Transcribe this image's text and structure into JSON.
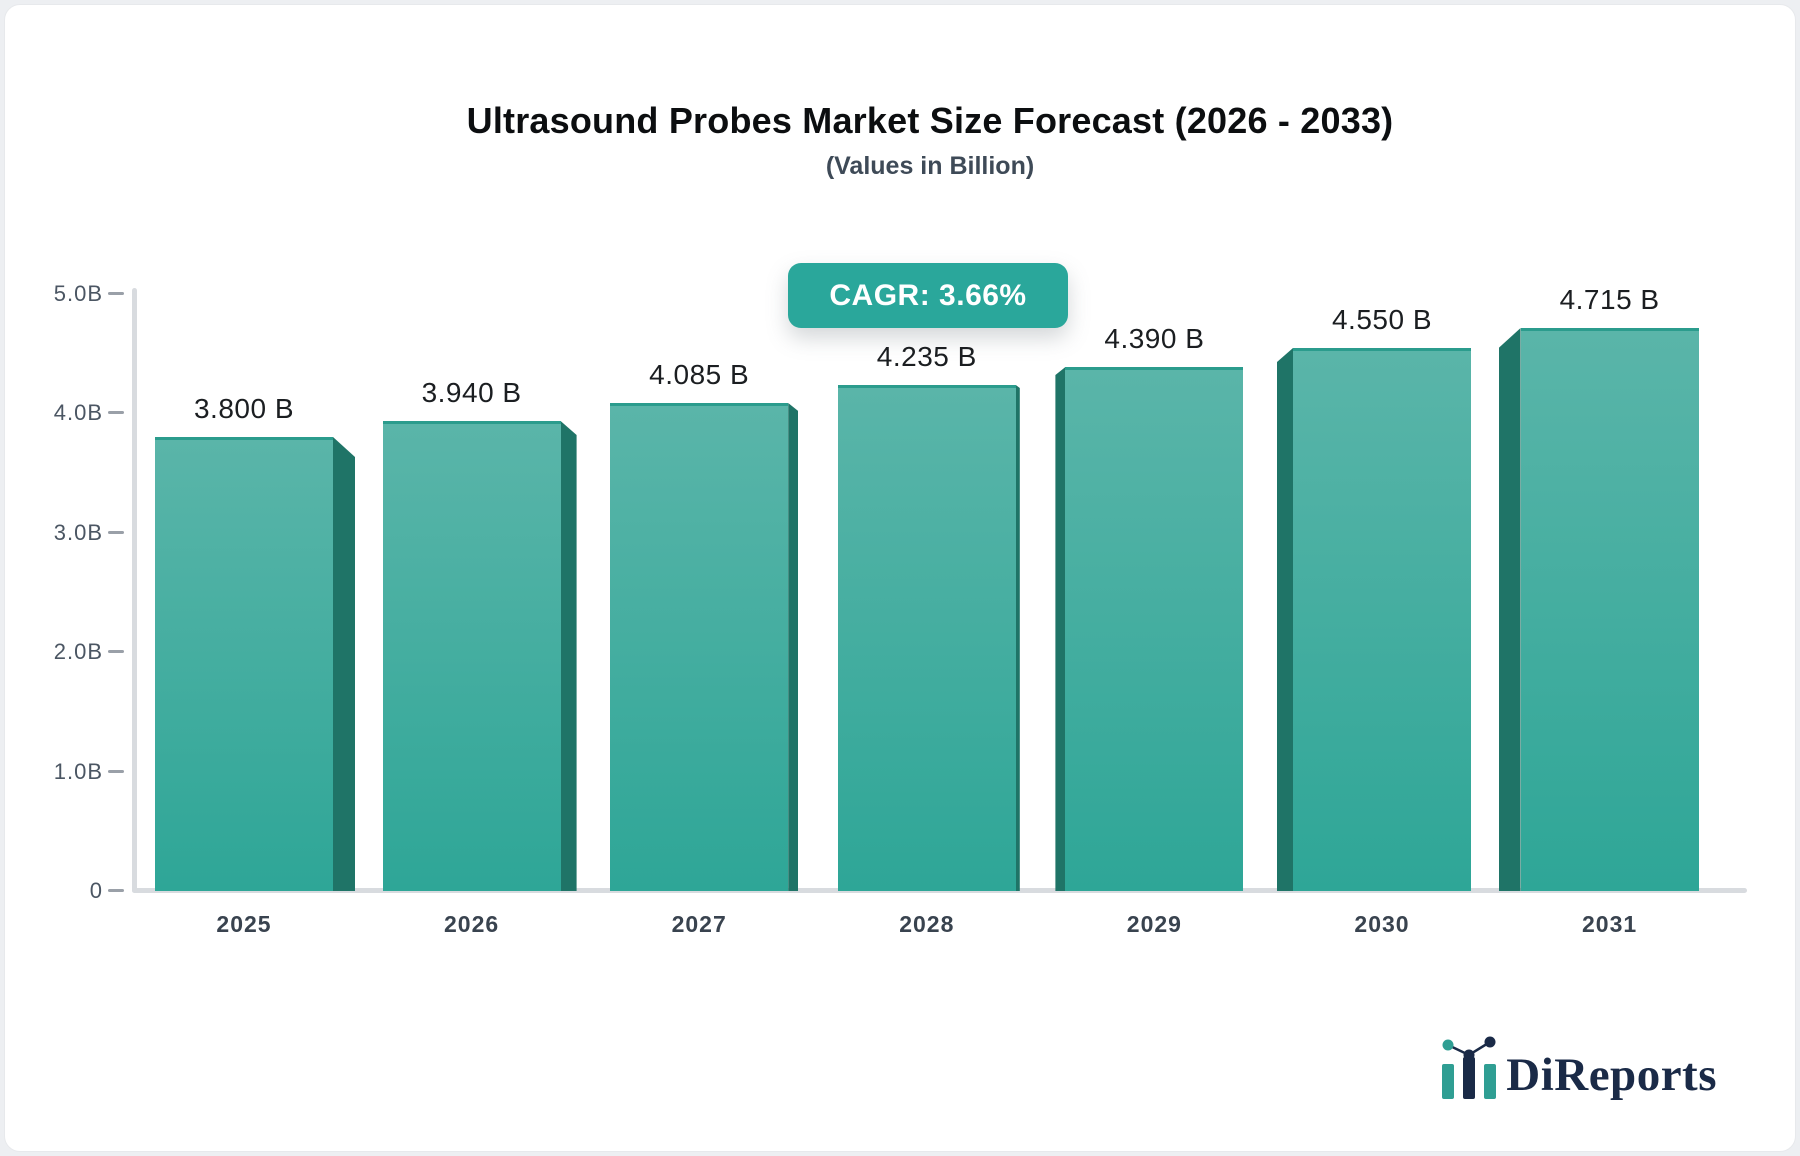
{
  "chart_data": {
    "type": "bar",
    "title": "Ultrasound Probes Market Size Forecast (2026 - 2033)",
    "subtitle": "(Values in Billion)",
    "badge": "CAGR: 3.66%",
    "categories": [
      "2025",
      "2026",
      "2027",
      "2028",
      "2029",
      "2030",
      "2031"
    ],
    "values": [
      3.8,
      3.94,
      4.085,
      4.235,
      4.39,
      4.55,
      4.715
    ],
    "value_labels": [
      "3.800 B",
      "3.940 B",
      "4.085 B",
      "4.235 B",
      "4.390 B",
      "4.550 B",
      "4.715 B"
    ],
    "xlabel": "",
    "ylabel": "",
    "ylim": [
      0,
      5
    ],
    "yticks": {
      "values": [
        0,
        1,
        2,
        3,
        4,
        5
      ],
      "labels": [
        "0",
        "1.0B",
        "2.0B",
        "3.0B",
        "4.0B",
        "5.0B"
      ]
    },
    "grid": false,
    "legend": "none",
    "bar_style": "pseudo-3d, bevels face toward chart center",
    "colors": {
      "bar_face_top": "#5ab5a9",
      "bar_face_bottom": "#2ea697",
      "bar_top_edge": "#2b9c8d",
      "bar_bevel": "#1f7467",
      "axis_line": "#d8dbdf",
      "tick_dash": "#9aa0a8",
      "tick_label": "#4b5663",
      "category_label": "#39434f",
      "value_label": "#1b1e21",
      "badge_bg": "#2aa79b",
      "badge_text": "#ffffff",
      "title": "#0c0e10",
      "subtitle": "#3e4a57"
    }
  },
  "logo": {
    "text": "DiReports",
    "icon": "bar-chart-icon",
    "navy": "#1a2a47",
    "teal": "#2f9e93"
  }
}
